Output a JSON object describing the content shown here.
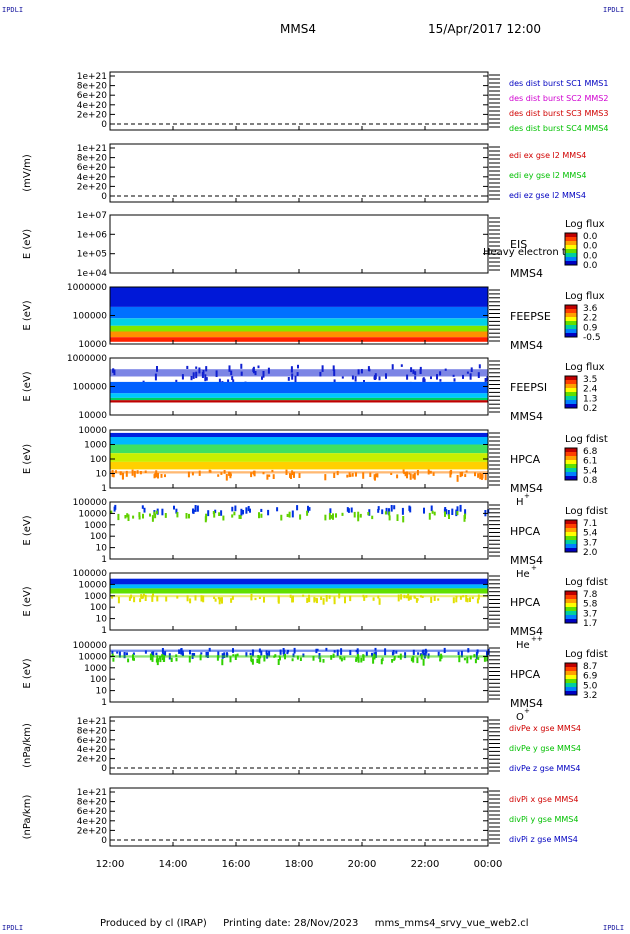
{
  "header": {
    "corner_tl": "IPDLI",
    "corner_tr": "IPDLI",
    "corner_bl": "IPDLI",
    "corner_br": "IPDLI",
    "spacecraft": "MMS4",
    "datetime": "15/Apr/2017 12:00"
  },
  "footer": {
    "produced": "Produced by cl (IRAP)",
    "printing": "Printing date: 28/Nov/2023",
    "file": "mms_mms4_srvy_vue_web2.cl"
  },
  "colors": {
    "red": "#d00000",
    "magenta": "#d000d0",
    "green": "#00c000",
    "blue": "#0000c0",
    "darkblue": "#000080"
  },
  "chart_data": {
    "x": {
      "ticks": [
        "12:00",
        "14:00",
        "16:00",
        "18:00",
        "20:00",
        "22:00",
        "00:00"
      ]
    },
    "panels": [
      {
        "type": "line",
        "ylabel": "",
        "yticks": [
          "1e+21",
          "8e+20",
          "6e+20",
          "4e+20",
          "2e+20",
          "0"
        ],
        "legend": [
          {
            "text": "des dist burst SC1 MMS1",
            "color": "#0000c0"
          },
          {
            "text": "des dist burst SC2 MMS2",
            "color": "#d000d0"
          },
          {
            "text": "des dist burst SC3 MMS3",
            "color": "#d00000"
          },
          {
            "text": "des dist burst SC4 MMS4",
            "color": "#00c000"
          }
        ]
      },
      {
        "type": "line",
        "ylabel": "(mV/m)",
        "yticks": [
          "1e+21",
          "8e+20",
          "6e+20",
          "4e+20",
          "2e+20",
          "0"
        ],
        "legend": [
          {
            "text": "edi ex gse l2 MMS4",
            "color": "#d00000"
          },
          {
            "text": "edi ey gse l2 MMS4",
            "color": "#00c000"
          },
          {
            "text": "edi ez gse l2 MMS4",
            "color": "#0000c0"
          }
        ]
      },
      {
        "type": "heatmap",
        "ylabel": "E (eV)",
        "yticks": [
          "1e+07",
          "1e+06",
          "1e+05",
          "1e+04"
        ],
        "instrument": "EIS",
        "extra": "Heavy electron tof",
        "sc": "MMS4",
        "species": "",
        "cbar_title": "Log flux",
        "cbar_ticks": [
          "0.0",
          "0.0",
          "0.0",
          "0.0"
        ],
        "bands": []
      },
      {
        "type": "heatmap",
        "ylabel": "E (eV)",
        "yticks": [
          "1000000",
          "100000",
          "10000"
        ],
        "instrument": "FEEPSE",
        "sc": "MMS4",
        "species": "",
        "cbar_title": "Log flux",
        "cbar_ticks": [
          "3.6",
          "2.2",
          "0.9",
          "-0.5"
        ],
        "bands": [
          {
            "y0": 0.0,
            "y1": 0.35,
            "color": "#0018d8"
          },
          {
            "y0": 0.35,
            "y1": 0.55,
            "color": "#0070ff"
          },
          {
            "y0": 0.55,
            "y1": 0.68,
            "color": "#00d0e8"
          },
          {
            "y0": 0.68,
            "y1": 0.78,
            "color": "#80e800"
          },
          {
            "y0": 0.78,
            "y1": 0.88,
            "color": "#ff9000"
          },
          {
            "y0": 0.88,
            "y1": 0.96,
            "color": "#ff2000"
          }
        ]
      },
      {
        "type": "heatmap",
        "ylabel": "E (eV)",
        "yticks": [
          "1000000",
          "100000",
          "10000"
        ],
        "instrument": "FEEPSI",
        "sc": "MMS4",
        "species": "",
        "cbar_title": "Log flux",
        "cbar_ticks": [
          "3.5",
          "2.4",
          "1.3",
          "0.2"
        ],
        "bands": [
          {
            "y0": 0.1,
            "y1": 0.42,
            "color": "#1020d0",
            "speckle": true
          },
          {
            "y0": 0.42,
            "y1": 0.62,
            "color": "#0060ff"
          },
          {
            "y0": 0.62,
            "y1": 0.7,
            "color": "#00c8ff"
          },
          {
            "y0": 0.7,
            "y1": 0.74,
            "color": "#00d060"
          },
          {
            "y0": 0.74,
            "y1": 0.78,
            "color": "#c00000"
          }
        ]
      },
      {
        "type": "heatmap",
        "ylabel": "E (eV)",
        "yticks": [
          "10000",
          "1000",
          "100",
          "10",
          "1"
        ],
        "instrument": "HPCA",
        "sc": "MMS4",
        "species": "H",
        "species_sup": "+",
        "cbar_title": "Log fdist",
        "cbar_ticks": [
          "6.8",
          "6.1",
          "5.4",
          "0.8"
        ],
        "bands": [
          {
            "y0": 0.05,
            "y1": 0.12,
            "color": "#0020e0"
          },
          {
            "y0": 0.12,
            "y1": 0.25,
            "color": "#00b8ff"
          },
          {
            "y0": 0.25,
            "y1": 0.4,
            "color": "#40e060"
          },
          {
            "y0": 0.4,
            "y1": 0.55,
            "color": "#c8f000"
          },
          {
            "y0": 0.55,
            "y1": 0.68,
            "color": "#ffd000"
          },
          {
            "y0": 0.68,
            "y1": 0.78,
            "color": "#ff8000",
            "speckle": true
          }
        ]
      },
      {
        "type": "heatmap",
        "ylabel": "E (eV)",
        "yticks": [
          "100000",
          "10000",
          "1000",
          "100",
          "10",
          "1"
        ],
        "instrument": "HPCA",
        "sc": "MMS4",
        "species": "He",
        "species_sup": "+",
        "cbar_title": "Log fdist",
        "cbar_ticks": [
          "7.1",
          "5.4",
          "3.7",
          "2.0"
        ],
        "bands": [
          {
            "y0": 0.05,
            "y1": 0.15,
            "color": "#0030e0",
            "sparse": true
          },
          {
            "y0": 0.15,
            "y1": 0.25,
            "color": "#60d000",
            "sparse": true
          }
        ]
      },
      {
        "type": "heatmap",
        "ylabel": "E (eV)",
        "yticks": [
          "100000",
          "10000",
          "1000",
          "100",
          "10",
          "1"
        ],
        "instrument": "HPCA",
        "sc": "MMS4",
        "species": "He",
        "species_sup": "++",
        "cbar_title": "Log fdist",
        "cbar_ticks": [
          "7.8",
          "5.8",
          "3.7",
          "1.7"
        ],
        "bands": [
          {
            "y0": 0.1,
            "y1": 0.2,
            "color": "#0020e0"
          },
          {
            "y0": 0.2,
            "y1": 0.27,
            "color": "#00b8ff"
          },
          {
            "y0": 0.27,
            "y1": 0.36,
            "color": "#60e000"
          },
          {
            "y0": 0.36,
            "y1": 0.45,
            "color": "#e0e000",
            "speckle": true
          }
        ]
      },
      {
        "type": "heatmap",
        "ylabel": "E (eV)",
        "yticks": [
          "100000",
          "10000",
          "1000",
          "100",
          "10",
          "1"
        ],
        "instrument": "HPCA",
        "sc": "MMS4",
        "species": "O",
        "species_sup": "+",
        "cbar_title": "Log fdist",
        "cbar_ticks": [
          "8.7",
          "6.9",
          "5.0",
          "3.2"
        ],
        "bands": [
          {
            "y0": 0.05,
            "y1": 0.15,
            "color": "#0030e0",
            "speckle": true
          },
          {
            "y0": 0.15,
            "y1": 0.25,
            "color": "#30d000",
            "speckle": true
          }
        ]
      },
      {
        "type": "line",
        "ylabel": "(nPa/km)",
        "yticks": [
          "1e+21",
          "8e+20",
          "6e+20",
          "4e+20",
          "2e+20",
          "0"
        ],
        "legend": [
          {
            "text": "divPe x gse MMS4",
            "color": "#d00000"
          },
          {
            "text": "divPe y gse MMS4",
            "color": "#00c000"
          },
          {
            "text": "divPe z gse MMS4",
            "color": "#0000c0"
          }
        ]
      },
      {
        "type": "line",
        "ylabel": "(nPa/km)",
        "yticks": [
          "1e+21",
          "8e+20",
          "6e+20",
          "4e+20",
          "2e+20",
          "0"
        ],
        "legend": [
          {
            "text": "divPi x gse MMS4",
            "color": "#d00000"
          },
          {
            "text": "divPi y gse MMS4",
            "color": "#00c000"
          },
          {
            "text": "divPi z gse MMS4",
            "color": "#0000c0"
          }
        ]
      }
    ]
  }
}
